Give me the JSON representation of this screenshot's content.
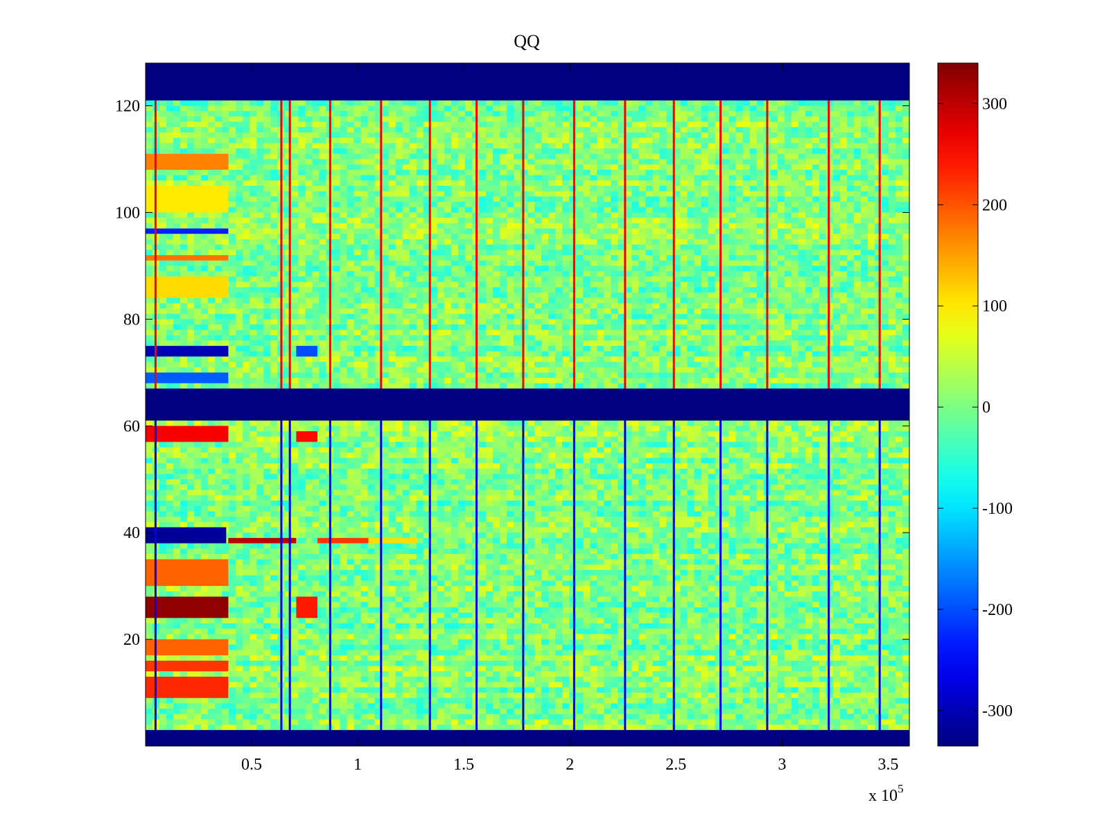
{
  "chart_data": {
    "type": "heatmap",
    "title": "QQ",
    "xlabel": "",
    "ylabel": "",
    "x_multiplier_label": "x 10",
    "x_multiplier_exponent": "5",
    "xlim": [
      0,
      3.6
    ],
    "ylim": [
      0,
      128
    ],
    "x_ticks": [
      {
        "v": 0.5,
        "label": "0.5"
      },
      {
        "v": 1,
        "label": "1"
      },
      {
        "v": 1.5,
        "label": "1.5"
      },
      {
        "v": 2,
        "label": "2"
      },
      {
        "v": 2.5,
        "label": "2.5"
      },
      {
        "v": 3,
        "label": "3"
      },
      {
        "v": 3.5,
        "label": "3.5"
      }
    ],
    "y_ticks": [
      {
        "v": 20,
        "label": "20"
      },
      {
        "v": 40,
        "label": "40"
      },
      {
        "v": 60,
        "label": "60"
      },
      {
        "v": 80,
        "label": "80"
      },
      {
        "v": 100,
        "label": "100"
      },
      {
        "v": 120,
        "label": "120"
      }
    ],
    "colorbar": {
      "colormap": "jet",
      "range": [
        -335,
        340
      ],
      "ticks": [
        {
          "v": 300,
          "label": "300"
        },
        {
          "v": 200,
          "label": "200"
        },
        {
          "v": 100,
          "label": "100"
        },
        {
          "v": 0,
          "label": "0"
        },
        {
          "v": -100,
          "label": "-100"
        },
        {
          "v": -200,
          "label": "-200"
        },
        {
          "v": -300,
          "label": "-300"
        }
      ]
    },
    "fill_value": -335,
    "masked_row_bands": [
      [
        121,
        128
      ],
      [
        61,
        67
      ],
      [
        0,
        3
      ]
    ],
    "background_level": 5,
    "vertical_stripes_x": [
      0.047,
      0.64,
      0.68,
      0.87,
      1.11,
      1.34,
      1.56,
      1.78,
      2.02,
      2.26,
      2.49,
      2.71,
      2.93,
      3.22,
      3.46
    ],
    "row_features": [
      {
        "rows": [
          108,
          111
        ],
        "x": [
          0,
          0.39
        ],
        "value": 170
      },
      {
        "rows": [
          100,
          105
        ],
        "x": [
          0,
          0.39
        ],
        "value": 100
      },
      {
        "rows": [
          96,
          97
        ],
        "x": [
          0,
          0.39
        ],
        "value": -230
      },
      {
        "rows": [
          91,
          92
        ],
        "x": [
          0,
          0.39
        ],
        "value": 180
      },
      {
        "rows": [
          84,
          88
        ],
        "x": [
          0,
          0.39
        ],
        "value": 110
      },
      {
        "rows": [
          73,
          75
        ],
        "x": [
          0,
          0.39
        ],
        "value": -300
      },
      {
        "rows": [
          68,
          70
        ],
        "x": [
          0,
          0.39
        ],
        "value": -190
      },
      {
        "rows": [
          57,
          60
        ],
        "x": [
          0,
          0.39
        ],
        "value": 260
      },
      {
        "rows": [
          38,
          41
        ],
        "x": [
          0,
          0.38
        ],
        "value": -320
      },
      {
        "rows": [
          38,
          39
        ],
        "x": [
          0.39,
          0.71
        ],
        "value": 300
      },
      {
        "rows": [
          38,
          39
        ],
        "x": [
          0.81,
          1.05
        ],
        "value": 220
      },
      {
        "rows": [
          38,
          39
        ],
        "x": [
          1.05,
          1.28
        ],
        "value": 110
      },
      {
        "rows": [
          30,
          35
        ],
        "x": [
          0,
          0.39
        ],
        "value": 190
      },
      {
        "rows": [
          24,
          28
        ],
        "x": [
          0,
          0.39
        ],
        "value": 330
      },
      {
        "rows": [
          17,
          20
        ],
        "x": [
          0,
          0.39
        ],
        "value": 190
      },
      {
        "rows": [
          14,
          16
        ],
        "x": [
          0,
          0.39
        ],
        "value": 220
      },
      {
        "rows": [
          9,
          13
        ],
        "x": [
          0,
          0.39
        ],
        "value": 230
      },
      {
        "rows": [
          57,
          59
        ],
        "x": [
          0.71,
          0.81
        ],
        "value": 250
      },
      {
        "rows": [
          24,
          28
        ],
        "x": [
          0.71,
          0.81
        ],
        "value": 240
      },
      {
        "rows": [
          73,
          75
        ],
        "x": [
          0.71,
          0.81
        ],
        "value": -200
      }
    ]
  }
}
